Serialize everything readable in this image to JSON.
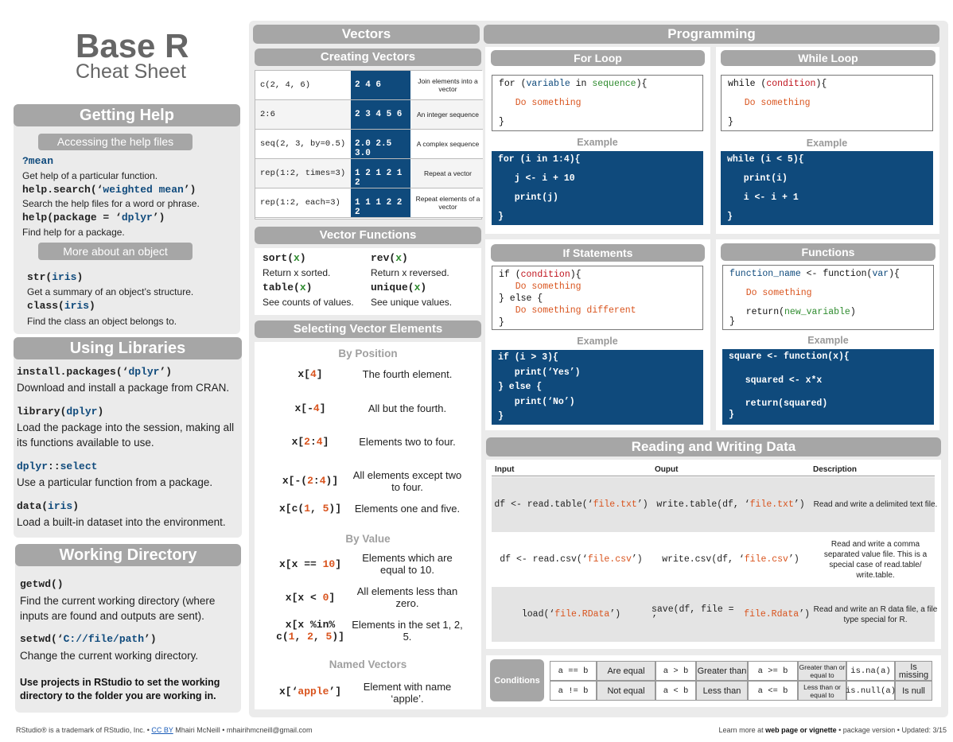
{
  "title": {
    "main": "Base R",
    "sub": "Cheat Sheet"
  },
  "getting_help": {
    "header": "Getting Help",
    "sub1": "Accessing the help files",
    "items": [
      {
        "code_parts": [
          {
            "t": "?mean",
            "c": "blue"
          }
        ],
        "desc": "Get help of a particular function."
      },
      {
        "code_parts": [
          {
            "t": "help.search(‘",
            "c": ""
          },
          {
            "t": "weighted mean",
            "c": "blue"
          },
          {
            "t": "’)",
            "c": ""
          }
        ],
        "desc": "Search the help files for a word or phrase."
      },
      {
        "code_parts": [
          {
            "t": "help(package = ‘",
            "c": ""
          },
          {
            "t": "dplyr",
            "c": "blue"
          },
          {
            "t": "’)",
            "c": ""
          }
        ],
        "desc": "Find help for a package."
      }
    ],
    "sub2": "More about an object",
    "items2": [
      {
        "code_parts": [
          {
            "t": "str(",
            "c": ""
          },
          {
            "t": "iris",
            "c": "blue"
          },
          {
            "t": ")",
            "c": ""
          }
        ],
        "desc": "Get a summary of an object’s structure."
      },
      {
        "code_parts": [
          {
            "t": "class(",
            "c": ""
          },
          {
            "t": "iris",
            "c": "blue"
          },
          {
            "t": ")",
            "c": ""
          }
        ],
        "desc": "Find the class an object belongs to."
      }
    ]
  },
  "libraries": {
    "header": "Using Libraries",
    "items": [
      {
        "code_parts": [
          {
            "t": "install.packages(‘",
            "c": ""
          },
          {
            "t": "dplyr",
            "c": "blue"
          },
          {
            "t": "’)",
            "c": ""
          }
        ],
        "desc": "Download and install a package from CRAN."
      },
      {
        "code_parts": [
          {
            "t": "library(",
            "c": ""
          },
          {
            "t": "dplyr",
            "c": "blue"
          },
          {
            "t": ")",
            "c": ""
          }
        ],
        "desc": "Load the package into the session, making all its functions available to use."
      },
      {
        "code_parts": [
          {
            "t": "dplyr",
            "c": "blue"
          },
          {
            "t": "::",
            "c": ""
          },
          {
            "t": "select",
            "c": "blue"
          }
        ],
        "desc": "Use a particular function from a package."
      },
      {
        "code_parts": [
          {
            "t": "data(",
            "c": ""
          },
          {
            "t": "iris",
            "c": "blue"
          },
          {
            "t": ")",
            "c": ""
          }
        ],
        "desc": "Load a built-in dataset into the environment."
      }
    ]
  },
  "wd": {
    "header": "Working Directory",
    "items": [
      {
        "code_parts": [
          {
            "t": "getwd()",
            "c": ""
          }
        ],
        "desc": "Find the current working directory (where inputs are found and outputs are sent)."
      },
      {
        "code_parts": [
          {
            "t": "setwd(‘",
            "c": ""
          },
          {
            "t": "C://file/path",
            "c": "blue"
          },
          {
            "t": "’)",
            "c": ""
          }
        ],
        "desc": "Change the current working directory."
      }
    ],
    "note": "Use projects in RStudio to set the working directory to the folder you are working in."
  },
  "vectors": {
    "header": "Vectors",
    "creating_header": "Creating Vectors",
    "creating": [
      {
        "code": "c(2, 4, 6)",
        "value": "2 4 6",
        "desc": "Join elements into a vector"
      },
      {
        "code": "2:6",
        "value": "2 3 4 5 6",
        "desc": "An integer sequence"
      },
      {
        "code": "seq(2, 3, by=0.5)",
        "value": "2.0 2.5 3.0",
        "desc": "A complex sequence"
      },
      {
        "code": "rep(1:2, times=3)",
        "value": "1 2 1 2 1 2",
        "desc": "Repeat a vector"
      },
      {
        "code": "rep(1:2, each=3)",
        "value": "1 1 1 2 2 2",
        "desc": "Repeat elements of a vector"
      }
    ],
    "functions_header": "Vector Functions",
    "functions": [
      {
        "name": "sort",
        "arg": "x",
        "desc": "Return x sorted."
      },
      {
        "name": "rev",
        "arg": "x",
        "desc": "Return x reversed."
      },
      {
        "name": "table",
        "arg": "x",
        "desc": "See counts of values."
      },
      {
        "name": "unique",
        "arg": "x",
        "desc": "See unique values."
      }
    ],
    "selecting_header": "Selecting Vector Elements",
    "by_position": "By Position",
    "by_value": "By Value",
    "named_vectors": "Named Vectors",
    "position": [
      {
        "code_parts": [
          {
            "t": "x[",
            "c": ""
          },
          {
            "t": "4",
            "c": "orange"
          },
          {
            "t": "]",
            "c": ""
          }
        ],
        "desc": "The fourth element."
      },
      {
        "code_parts": [
          {
            "t": "x[-",
            "c": ""
          },
          {
            "t": "4",
            "c": "orange"
          },
          {
            "t": "]",
            "c": ""
          }
        ],
        "desc": "All but the fourth."
      },
      {
        "code_parts": [
          {
            "t": "x[",
            "c": ""
          },
          {
            "t": "2",
            "c": "orange"
          },
          {
            "t": ":",
            "c": ""
          },
          {
            "t": "4",
            "c": "orange"
          },
          {
            "t": "]",
            "c": ""
          }
        ],
        "desc": "Elements two to four."
      },
      {
        "code_parts": [
          {
            "t": "x[-(",
            "c": ""
          },
          {
            "t": "2",
            "c": "orange"
          },
          {
            "t": ":",
            "c": ""
          },
          {
            "t": "4",
            "c": "orange"
          },
          {
            "t": ")]",
            "c": ""
          }
        ],
        "desc": "All elements except two to four."
      },
      {
        "code_parts": [
          {
            "t": "x[c(",
            "c": ""
          },
          {
            "t": "1",
            "c": "orange"
          },
          {
            "t": ", ",
            "c": ""
          },
          {
            "t": "5",
            "c": "orange"
          },
          {
            "t": ")]",
            "c": ""
          }
        ],
        "desc": "Elements one and five."
      }
    ],
    "value": [
      {
        "code_parts": [
          {
            "t": "x[x == ",
            "c": ""
          },
          {
            "t": "10",
            "c": "orange"
          },
          {
            "t": "]",
            "c": ""
          }
        ],
        "desc": "Elements which are equal to 10."
      },
      {
        "code_parts": [
          {
            "t": "x[x < ",
            "c": ""
          },
          {
            "t": "0",
            "c": "orange"
          },
          {
            "t": "]",
            "c": ""
          }
        ],
        "desc": "All elements less than zero."
      },
      {
        "code_parts": [
          {
            "t": "x[x %in%",
            "c": ""
          }
        ],
        "code2_parts": [
          {
            "t": "c(",
            "c": ""
          },
          {
            "t": "1",
            "c": "orange"
          },
          {
            "t": ", ",
            "c": ""
          },
          {
            "t": "2",
            "c": "orange"
          },
          {
            "t": ", ",
            "c": ""
          },
          {
            "t": "5",
            "c": "orange"
          },
          {
            "t": ")]",
            "c": ""
          }
        ],
        "desc": "Elements in the set 1, 2, 5."
      }
    ],
    "named": {
      "code_parts": [
        {
          "t": "x[‘",
          "c": ""
        },
        {
          "t": "apple",
          "c": "orange"
        },
        {
          "t": "’]",
          "c": ""
        }
      ],
      "desc": "Element with name ‘apple’."
    }
  },
  "programming": {
    "header": "Programming",
    "for_loop": {
      "header": "For Loop",
      "example": "Example",
      "code": [
        [
          {
            "t": "for (",
            "c": ""
          },
          {
            "t": "variable",
            "c": "blue"
          },
          {
            "t": " in ",
            "c": ""
          },
          {
            "t": "sequence",
            "c": "green"
          },
          {
            "t": "){",
            "c": ""
          }
        ],
        [
          {
            "t": "   Do something",
            "c": "orange"
          }
        ],
        [
          {
            "t": "}",
            "c": ""
          }
        ]
      ],
      "ex": [
        "for (i in 1:4){",
        "   j <- i + 10",
        "   print(j)",
        "}"
      ]
    },
    "while_loop": {
      "header": "While Loop",
      "example": "Example",
      "code": [
        [
          {
            "t": "while (",
            "c": ""
          },
          {
            "t": "condition",
            "c": "red"
          },
          {
            "t": "){",
            "c": ""
          }
        ],
        [
          {
            "t": "   Do something",
            "c": "orange"
          }
        ],
        [
          {
            "t": "}",
            "c": ""
          }
        ]
      ],
      "ex": [
        "while (i < 5){",
        "   print(i)",
        "   i <- i + 1",
        "}"
      ]
    },
    "if_statements": {
      "header": "If Statements",
      "example": "Example",
      "code": [
        [
          {
            "t": "if (",
            "c": ""
          },
          {
            "t": "condition",
            "c": "red"
          },
          {
            "t": "){",
            "c": ""
          }
        ],
        [
          {
            "t": "   Do something",
            "c": "orange"
          }
        ],
        [
          {
            "t": "} else {",
            "c": ""
          }
        ],
        [
          {
            "t": "   Do something different",
            "c": "orange"
          }
        ],
        [
          {
            "t": "}",
            "c": ""
          }
        ]
      ],
      "ex": [
        "if (i > 3){",
        "   print(‘Yes’)",
        "} else {",
        "   print(‘No’)",
        "}"
      ]
    },
    "functions": {
      "header": "Functions",
      "example": "Example",
      "code": [
        [
          {
            "t": "function_name",
            "c": "blue"
          },
          {
            "t": " <- function(",
            "c": ""
          },
          {
            "t": "var",
            "c": "blue"
          },
          {
            "t": "){",
            "c": ""
          }
        ],
        [
          {
            "t": "   Do something",
            "c": "orange"
          }
        ],
        [
          {
            "t": "   return(",
            "c": ""
          },
          {
            "t": "new_variable",
            "c": "green"
          },
          {
            "t": ")",
            "c": ""
          }
        ],
        [
          {
            "t": "}",
            "c": ""
          }
        ]
      ],
      "ex": [
        "square <- function(x){",
        "   squared <- x*x",
        "   return(squared)",
        "}"
      ]
    }
  },
  "rw": {
    "header": "Reading and Writing Data",
    "columns": [
      "Input",
      "Ouput",
      "Description"
    ],
    "rows": [
      {
        "input": [
          {
            "t": "df <- read.table(‘",
            "c": ""
          },
          {
            "t": "file.txt",
            "c": "orange"
          },
          {
            "t": "’)",
            "c": ""
          }
        ],
        "output": [
          {
            "t": "write.table(df, ‘",
            "c": ""
          },
          {
            "t": "file.txt",
            "c": "orange"
          },
          {
            "t": "’)",
            "c": ""
          }
        ],
        "desc": "Read and write a delimited text file."
      },
      {
        "input": [
          {
            "t": "df <- read.csv(‘",
            "c": ""
          },
          {
            "t": "file.csv",
            "c": "orange"
          },
          {
            "t": "’)",
            "c": ""
          }
        ],
        "output": [
          {
            "t": "write.csv(df, ‘",
            "c": ""
          },
          {
            "t": "file.csv",
            "c": "orange"
          },
          {
            "t": "’)",
            "c": ""
          }
        ],
        "desc": "Read and write a comma separated value file. This is a special case of read.table/ write.table."
      },
      {
        "input": [
          {
            "t": "load(‘",
            "c": ""
          },
          {
            "t": "file.RData",
            "c": "orange"
          },
          {
            "t": "’)",
            "c": ""
          }
        ],
        "output": [
          {
            "t": "save(df, file = ’",
            "c": ""
          },
          {
            "t": "file.Rdata",
            "c": "orange"
          },
          {
            "t": "’)",
            "c": ""
          }
        ],
        "desc": "Read and write an R data file, a file type special for R."
      }
    ]
  },
  "conditions": {
    "label": "Conditions",
    "cells": [
      [
        "a == b",
        "Are equal",
        "a > b",
        "Greater than",
        "a >= b",
        "Greater than or equal to",
        "is.na(a)",
        "Is missing"
      ],
      [
        "a != b",
        "Not equal",
        "a < b",
        "Less than",
        "a <= b",
        "Less than or equal to",
        "is.null(a)",
        "Is null"
      ]
    ]
  },
  "footer": {
    "left1": "RStudio® is a trademark of RStudio, Inc.  •  ",
    "license": "CC BY",
    "left2": " Mhairi McNeill  •  mhairihmcneill@gmail.com",
    "right1": "Learn more at ",
    "right_bold": "web page or vignette",
    "right2": "  •  package  version  •  Updated: 3/15"
  },
  "colors": {
    "header_gray": "#a6a6a6",
    "panel_gray": "#ebebeb",
    "code_blue": "#0f4a7c",
    "orange": "#d9541e",
    "green": "#2e8b2e",
    "red": "#c0141e"
  }
}
